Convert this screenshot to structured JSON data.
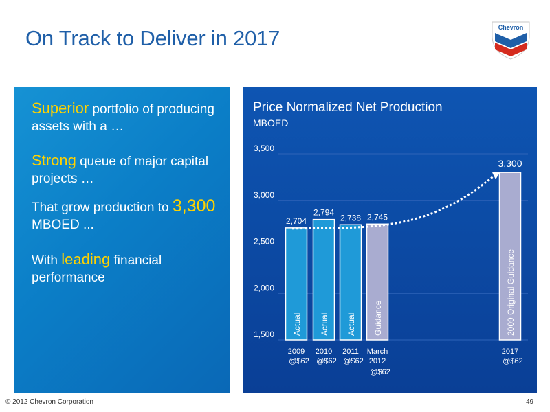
{
  "slide": {
    "title": "On Track to Deliver in 2017",
    "logo_text": "Chevron",
    "footer_copyright": "© 2012 Chevron Corporation",
    "page_number": "49"
  },
  "bullets": [
    {
      "highlight": "Superior",
      "text": " portfolio of producing assets with a …"
    },
    {
      "highlight": "Strong",
      "text": " queue of major capital projects …"
    },
    {
      "prefix": "That grow production to ",
      "highlight": "3,300",
      "text": " MBOED ..."
    },
    {
      "prefix": "With ",
      "highlight": "leading",
      "text": " financial performance"
    }
  ],
  "colors": {
    "brand_blue": "#1f5fa8",
    "highlight_yellow": "#ffd200",
    "actual_bar": "#1f9ad8",
    "guidance_bar": "#a9acd0",
    "chevron_red": "#d52b1e"
  },
  "chart_data": {
    "type": "bar",
    "title": "Price Normalized Net Production",
    "subtitle": "MBOED",
    "ylim": [
      1500,
      3500
    ],
    "yticks": [
      "1,500",
      "2,000",
      "2,500",
      "3,000",
      "3,500"
    ],
    "ytick_values": [
      1500,
      2000,
      2500,
      3000,
      3500
    ],
    "grid": true,
    "categories": [
      {
        "line1": "2009",
        "line2": "@$62",
        "line3": ""
      },
      {
        "line1": "2010",
        "line2": "@$62",
        "line3": ""
      },
      {
        "line1": "2011",
        "line2": "@$62",
        "line3": ""
      },
      {
        "line1": "March",
        "line2": "2012",
        "line3": "@$62"
      },
      {
        "line1": "2017",
        "line2": "@$62",
        "line3": ""
      }
    ],
    "values": [
      2704,
      2794,
      2738,
      2745,
      3300
    ],
    "value_labels": [
      "2,704",
      "2,794",
      "2,738",
      "2,745",
      "3,300"
    ],
    "bar_labels": [
      "Actual",
      "Actual",
      "Actual",
      "Guidance",
      "2009 Original Guidance"
    ],
    "bar_kinds": [
      "actual",
      "actual",
      "actual",
      "guidance",
      "guidance"
    ],
    "trend_line": "dashed arrow from 2009 to 2017"
  }
}
